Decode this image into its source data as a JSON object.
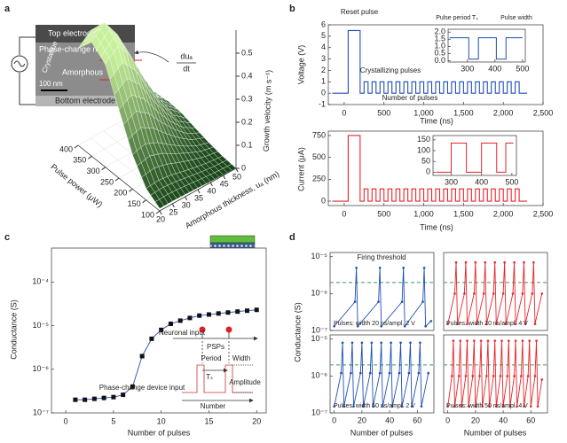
{
  "chart_data": [
    {
      "type": "surface",
      "panel_label": "a",
      "inset_labels": [
        "Top electrode",
        "Phase-change material",
        "Crystalline",
        "Amorphous",
        "uₐ",
        "100 nm",
        "Bottom electrode"
      ],
      "annotation_num": "duₐ",
      "annotation_den": "dt",
      "xlabel": "Pulse power (μW)",
      "ylabel": "Amorphous thickness, uₐ (nm)",
      "zlabel": "Growth velocity (m s⁻¹)",
      "x": [
        100,
        150,
        200,
        250,
        300,
        350,
        400
      ],
      "y": [
        20,
        25,
        30,
        35,
        40,
        45,
        50
      ],
      "z": [
        [
          0.01,
          0.011,
          0.009,
          0.007,
          0.004,
          0.002,
          0.001
        ],
        [
          0.05,
          0.055,
          0.047,
          0.033,
          0.021,
          0.011,
          0.006
        ],
        [
          0.149,
          0.165,
          0.14,
          0.099,
          0.063,
          0.033,
          0.017
        ],
        [
          0.297,
          0.33,
          0.281,
          0.198,
          0.125,
          0.066,
          0.033
        ],
        [
          0.446,
          0.495,
          0.421,
          0.297,
          0.188,
          0.099,
          0.05
        ],
        [
          0.495,
          0.55,
          0.468,
          0.33,
          0.209,
          0.11,
          0.055
        ],
        [
          0.421,
          0.468,
          0.397,
          0.281,
          0.178,
          0.094,
          0.047
        ]
      ],
      "xlim": [
        100,
        400
      ],
      "ylim": [
        20,
        50
      ],
      "zlim": [
        0,
        0.6
      ],
      "xticks": [
        100,
        150,
        200,
        250,
        300,
        350,
        400
      ],
      "yticks": [
        20,
        25,
        30,
        35,
        40,
        45,
        50
      ],
      "zticks": [
        0,
        0.1,
        0.2,
        0.3,
        0.4,
        0.5
      ],
      "color": "#7fd36a"
    },
    {
      "type": "line",
      "panel_label": "b",
      "ylabel": "Voltage (V)",
      "xlabel": "Time (ns)",
      "annotations": [
        "Reset pulse",
        "Crystallizing pulses",
        "Number of pulses"
      ],
      "x": [
        -150,
        50,
        50,
        200,
        200,
        250,
        250,
        300,
        300,
        350,
        350,
        400,
        400,
        450,
        450,
        500,
        500,
        550,
        550,
        600,
        600,
        650,
        650,
        700,
        700,
        750,
        750,
        800,
        800,
        850,
        850,
        900,
        900,
        950,
        950,
        1000,
        1000,
        1050,
        1050,
        1100,
        1100,
        1150,
        1150,
        1200,
        1200,
        1250,
        1250,
        1300,
        1300,
        1350,
        1350,
        1400,
        1400,
        1450,
        1450,
        1500,
        1500,
        1550,
        1550,
        1600,
        1600,
        1650,
        1650,
        1700,
        1700,
        1750,
        1750,
        1800,
        1800,
        1850,
        1850,
        1900,
        1900,
        1950,
        1950,
        2000,
        2000,
        2050,
        2050,
        2100,
        2100,
        2150,
        2150,
        2200,
        2200,
        2300
      ],
      "series": [
        {
          "color": "#1f4fb4",
          "values": [
            0,
            0,
            5.5,
            5.5,
            0,
            0,
            1,
            1,
            0,
            0,
            1,
            1,
            0,
            0,
            1,
            1,
            0,
            0,
            1,
            1,
            0,
            0,
            1,
            1,
            0,
            0,
            1,
            1,
            0,
            0,
            1,
            1,
            0,
            0,
            1,
            1,
            0,
            0,
            1,
            1,
            0,
            0,
            1,
            1,
            0,
            0,
            1,
            1,
            0,
            0,
            1,
            1,
            0,
            0,
            1,
            1,
            0,
            0,
            1,
            1,
            0,
            0,
            1,
            1,
            0,
            0,
            1,
            1,
            0,
            0,
            1,
            1,
            0,
            0,
            1,
            1,
            0,
            0,
            1,
            1,
            0,
            0,
            1,
            1,
            0,
            0
          ]
        }
      ],
      "xlim": [
        -200,
        2500
      ],
      "ylim": [
        -1,
        6
      ],
      "yticks": [
        -1,
        0,
        1,
        2,
        3,
        4,
        5,
        6
      ],
      "xticks": [
        0,
        500,
        {
          "value": 1000,
          "label": "1,000"
        },
        {
          "value": 1500,
          "label": "1,500"
        },
        {
          "value": 2000,
          "label": "2,000"
        },
        {
          "value": 2500,
          "label": "2,500"
        }
      ]
    },
    {
      "type": "line",
      "annotations": [
        "Pulse period Tₛ",
        "Pulse width"
      ],
      "x": [
        235,
        305,
        305,
        340,
        340,
        405,
        405,
        440,
        440,
        500
      ],
      "series": [
        {
          "color": "#1f4fb4",
          "values": [
            1.6,
            1.6,
            0.1,
            0.1,
            1.6,
            1.6,
            0.1,
            0.1,
            1.6,
            1.6
          ]
        }
      ],
      "xlim": [
        230,
        510
      ],
      "ylim": [
        -0.1,
        2.2
      ],
      "xticks": [
        300,
        400,
        500
      ],
      "yticks": [
        {
          "value": 0,
          "label": "0.0"
        },
        0.5,
        {
          "value": 1,
          "label": "1.0"
        },
        1.5,
        {
          "value": 2,
          "label": "2.0"
        }
      ]
    },
    {
      "type": "line",
      "ylabel": "Current (μA)",
      "xlabel": "Time (ns)",
      "x": [
        -150,
        50,
        50,
        200,
        200,
        250,
        250,
        300,
        300,
        350,
        350,
        400,
        400,
        450,
        450,
        500,
        500,
        550,
        550,
        600,
        600,
        650,
        650,
        700,
        700,
        750,
        750,
        800,
        800,
        850,
        850,
        900,
        900,
        950,
        950,
        1000,
        1000,
        1050,
        1050,
        1100,
        1100,
        1150,
        1150,
        1200,
        1200,
        1250,
        1250,
        1300,
        1300,
        1350,
        1350,
        1400,
        1400,
        1450,
        1450,
        1500,
        1500,
        1550,
        1550,
        1600,
        1600,
        1650,
        1650,
        1700,
        1700,
        1750,
        1750,
        1800,
        1800,
        1850,
        1850,
        1900,
        1900,
        1950,
        1950,
        2000,
        2000,
        2050,
        2050,
        2100,
        2100,
        2150,
        2150,
        2200,
        2200,
        2300
      ],
      "series": [
        {
          "color": "#e8232a",
          "values": [
            0,
            0,
            750,
            750,
            0,
            0,
            140,
            140,
            0,
            0,
            140,
            140,
            0,
            0,
            140,
            140,
            0,
            0,
            140,
            140,
            0,
            0,
            140,
            140,
            0,
            0,
            140,
            140,
            0,
            0,
            140,
            140,
            0,
            0,
            140,
            140,
            0,
            0,
            140,
            140,
            0,
            0,
            140,
            140,
            0,
            0,
            140,
            140,
            0,
            0,
            140,
            140,
            0,
            0,
            140,
            140,
            0,
            0,
            140,
            140,
            0,
            0,
            140,
            140,
            0,
            0,
            140,
            140,
            0,
            0,
            140,
            140,
            0,
            0,
            140,
            140,
            0,
            0,
            140,
            140,
            0,
            0,
            140,
            140,
            0,
            0
          ]
        }
      ],
      "xlim": [
        -200,
        2500
      ],
      "ylim": [
        -50,
        800
      ],
      "yticks": [
        0,
        250,
        500,
        750
      ],
      "xticks": [
        0,
        500,
        {
          "value": 1000,
          "label": "1,000"
        },
        {
          "value": 1500,
          "label": "1,500"
        },
        {
          "value": 2000,
          "label": "2,000"
        },
        {
          "value": 2500,
          "label": "2,500"
        }
      ]
    },
    {
      "type": "line",
      "x": [
        250,
        300,
        300,
        350,
        350,
        400,
        400,
        450,
        450,
        480,
        480,
        505
      ],
      "series": [
        {
          "color": "#e8232a",
          "values": [
            0,
            0,
            135,
            135,
            0,
            0,
            135,
            135,
            0,
            0,
            135,
            135
          ]
        }
      ],
      "xlim": [
        240,
        515
      ],
      "ylim": [
        -15,
        170
      ],
      "xticks": [
        300,
        400,
        500
      ],
      "yticks": [
        0,
        50,
        100,
        150
      ]
    },
    {
      "type": "line",
      "panel_label": "c",
      "ylabel": "Conductance (S)",
      "xlabel": "Number of pulses",
      "annotations": [
        "Neuronal input",
        "PSPs",
        "Period",
        "Width",
        "Tₛ",
        "Amplitude",
        "Phase-change device input",
        "Number"
      ],
      "x": [
        1,
        2,
        3,
        4,
        5,
        6,
        7,
        8,
        9,
        10,
        11,
        12,
        13,
        14,
        15,
        16,
        17,
        18,
        19,
        20
      ],
      "series": [
        {
          "color": "#3b5bc4",
          "marker_color": "#111",
          "markers": "square",
          "values": [
            2e-07,
            2e-07,
            2.1e-07,
            2.2e-07,
            2.3e-07,
            2.6e-07,
            4e-07,
            2e-06,
            5e-06,
            8e-06,
            1.1e-05,
            1.3e-05,
            1.5e-05,
            1.7e-05,
            1.8e-05,
            1.9e-05,
            2e-05,
            2.1e-05,
            2.2e-05,
            2.3e-05
          ]
        }
      ],
      "log": true,
      "xlim": [
        -1.5,
        21
      ],
      "ylim": [
        1e-07,
        0.0006
      ],
      "xticks": [
        0,
        5,
        10,
        15,
        20
      ],
      "yticks": [
        {
          "value": 1e-07,
          "label": "10⁻⁷"
        },
        {
          "value": 1e-06,
          "label": "10⁻⁶"
        },
        {
          "value": 1e-05,
          "label": "10⁻⁵"
        },
        {
          "value": 0.0001,
          "label": "10⁻⁴"
        }
      ]
    },
    {
      "type": "line",
      "panel_label": "d",
      "ylabel": "Conductance (S)",
      "threshold_label": "Firing threshold",
      "title": "Pulses: width 20 ns/ampl. 2 V",
      "x": [
        0,
        15,
        16,
        17,
        32,
        33,
        34,
        49,
        50,
        51,
        64,
        65,
        66,
        70
      ],
      "series": [
        {
          "color": "#1f4fb4",
          "markers": "circle",
          "values": [
            1.3e-07,
            6e-07,
            5e-06,
            1.3e-07,
            6e-07,
            5e-06,
            1.3e-07,
            6e-07,
            5e-06,
            1.3e-07,
            6e-07,
            5e-06,
            1.3e-07,
            1.8e-07
          ]
        }
      ],
      "log": true,
      "xlim": [
        -3,
        72
      ],
      "ylim": [
        1e-07,
        1.3e-05
      ],
      "threshold": 2e-06,
      "threshold_color": "#3a9a5a",
      "yticks": [
        {
          "value": 1e-07,
          "label": "10⁻⁷"
        },
        {
          "value": 1e-06,
          "label": "10⁻⁶"
        },
        {
          "value": 1e-05,
          "label": "10⁻⁵"
        }
      ]
    },
    {
      "type": "line",
      "title": "Pulses: width 20 ns/ampl. 4 V",
      "x": [
        0,
        5,
        6,
        7,
        12,
        13,
        14,
        19,
        20,
        21,
        26,
        27,
        28,
        33,
        34,
        35,
        40,
        41,
        42,
        47,
        48,
        49,
        54,
        55,
        56,
        61,
        62,
        63,
        68
      ],
      "series": [
        {
          "color": "#e8232a",
          "markers": "circle",
          "values": [
            1.5e-07,
            1e-06,
            7e-06,
            1.5e-07,
            1e-06,
            7e-06,
            1.5e-07,
            1e-06,
            7e-06,
            1.5e-07,
            1e-06,
            7e-06,
            1.5e-07,
            1e-06,
            7e-06,
            1.5e-07,
            1e-06,
            7e-06,
            1.5e-07,
            1e-06,
            7e-06,
            1.5e-07,
            1e-06,
            7e-06,
            1.5e-07,
            1e-06,
            7e-06,
            1.5e-07,
            1e-06
          ]
        }
      ],
      "log": true,
      "xlim": [
        -3,
        72
      ],
      "ylim": [
        1e-07,
        1.3e-05
      ],
      "threshold": 2e-06,
      "threshold_color": "#3a9a5a"
    },
    {
      "type": "line",
      "title": "Pulses: width 50 ns/ampl. 2 V",
      "xlabel": "Number of pulses",
      "x": [
        0,
        5,
        6,
        7,
        12,
        13,
        14,
        19,
        20,
        21,
        26,
        27,
        28,
        33,
        34,
        35,
        40,
        41,
        42,
        47,
        48,
        49,
        54,
        55,
        56,
        61,
        62,
        63,
        68
      ],
      "series": [
        {
          "color": "#1f4fb4",
          "markers": "circle",
          "values": [
            1.5e-07,
            1.2e-06,
            8e-06,
            1.5e-07,
            1.2e-06,
            8e-06,
            1.5e-07,
            1.2e-06,
            8e-06,
            1.5e-07,
            1.2e-06,
            8e-06,
            1.5e-07,
            1.2e-06,
            8e-06,
            1.5e-07,
            1.2e-06,
            8e-06,
            1.5e-07,
            1.2e-06,
            8e-06,
            1.5e-07,
            1.2e-06,
            8e-06,
            1.5e-07,
            1.2e-06,
            8e-06,
            1.5e-07,
            1.2e-06
          ]
        }
      ],
      "log": true,
      "xlim": [
        -3,
        72
      ],
      "ylim": [
        1e-07,
        1.3e-05
      ],
      "threshold": 2e-06,
      "threshold_color": "#3a9a5a",
      "xticks": [
        0,
        20,
        40,
        60
      ],
      "yticks": [
        {
          "value": 1e-07,
          "label": "10⁻⁷"
        },
        {
          "value": 1e-06,
          "label": "10⁻⁶"
        },
        {
          "value": 1e-05,
          "label": "10⁻⁵"
        }
      ]
    },
    {
      "type": "line",
      "title": "Pulses: width 50 ns/ampl. 4 V",
      "xlabel": "Number of pulses",
      "x": [
        0,
        3,
        4,
        5,
        8,
        9,
        10,
        13,
        14,
        15,
        18,
        19,
        20,
        23,
        24,
        25,
        28,
        29,
        30,
        33,
        34,
        35,
        38,
        39,
        40,
        43,
        44,
        45,
        48,
        49,
        50,
        53,
        54,
        55,
        58,
        59,
        60,
        63,
        64,
        65,
        68
      ],
      "series": [
        {
          "color": "#e8232a",
          "markers": "circle",
          "values": [
            1.5e-07,
            1e-06,
            9e-06,
            1.5e-07,
            1e-06,
            9e-06,
            1.5e-07,
            1e-06,
            9e-06,
            1.5e-07,
            1e-06,
            9e-06,
            1.5e-07,
            1e-06,
            9e-06,
            1.5e-07,
            1e-06,
            9e-06,
            1.5e-07,
            1e-06,
            9e-06,
            1.5e-07,
            1e-06,
            9e-06,
            1.5e-07,
            1e-06,
            9e-06,
            1.5e-07,
            1e-06,
            9e-06,
            1.5e-07,
            1e-06,
            9e-06,
            1.5e-07,
            1e-06,
            9e-06,
            1.5e-07,
            1e-06,
            9e-06,
            1.5e-07,
            8e-07
          ]
        }
      ],
      "log": true,
      "xlim": [
        -3,
        72
      ],
      "ylim": [
        1e-07,
        1.3e-05
      ],
      "threshold": 2e-06,
      "threshold_color": "#3a9a5a",
      "xticks": [
        0,
        20,
        40,
        60
      ]
    }
  ]
}
